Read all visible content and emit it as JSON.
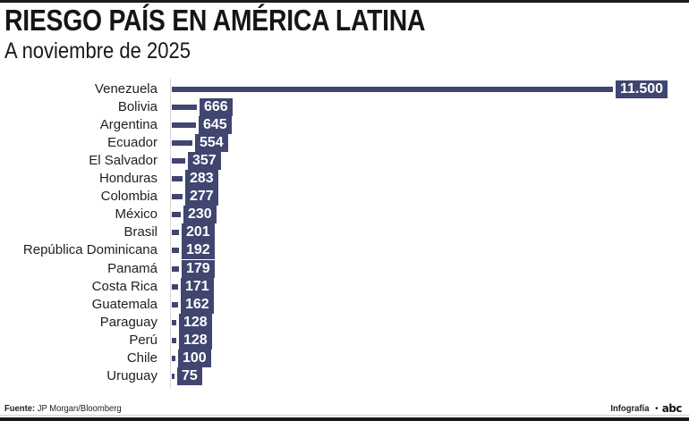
{
  "header": {
    "title": "RIESGO PAÍS EN AMÉRICA LATINA",
    "subtitle": "A noviembre de 2025"
  },
  "footer": {
    "source_label": "Fuente:",
    "source_value": "JP Morgan/Bloomberg",
    "credit": "Infografía",
    "separator": "•",
    "logo": "abc"
  },
  "colors": {
    "bar": "#40466f",
    "label_text": "#ffffff",
    "axis": "#d8d8d8"
  },
  "chart_data": {
    "type": "bar",
    "orientation": "horizontal",
    "title": "RIESGO PAÍS EN AMÉRICA LATINA",
    "subtitle": "A noviembre de 2025",
    "xlabel": "",
    "ylabel": "",
    "grid": false,
    "legend": null,
    "categories": [
      "Venezuela",
      "Bolivia",
      "Argentina",
      "Ecuador",
      "El Salvador",
      "Honduras",
      "Colombia",
      "México",
      "Brasil",
      "República Dominicana",
      "Panamá",
      "Costa Rica",
      "Guatemala",
      "Paraguay",
      "Perú",
      "Chile",
      "Uruguay"
    ],
    "values": [
      11500,
      666,
      645,
      554,
      357,
      283,
      277,
      230,
      201,
      192,
      179,
      171,
      162,
      128,
      128,
      100,
      75
    ],
    "value_labels": [
      "11.500",
      "666",
      "645",
      "554",
      "357",
      "283",
      "277",
      "230",
      "201",
      "192",
      "179",
      "171",
      "162",
      "128",
      "128",
      "100",
      "75"
    ],
    "xlim": [
      0,
      11500
    ],
    "source": "JP Morgan/Bloomberg"
  }
}
